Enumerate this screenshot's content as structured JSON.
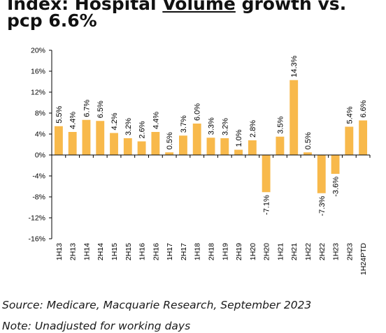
{
  "title": {
    "before": "Index: Hospital ",
    "underlined": "Volume",
    "after": " growth vs. pcp 6.6%"
  },
  "source": "Source: Medicare, Macquarie Research, September 2023",
  "note": "Note: Unadjusted for working days",
  "colors": {
    "bar": "#F8B94B",
    "axis": "#000000",
    "text": "#000000"
  },
  "chart_data": {
    "type": "bar",
    "title": "Index: Hospital Volume growth vs. pcp 6.6%",
    "xlabel": "",
    "ylabel": "",
    "categories": [
      "1H13",
      "2H13",
      "1H14",
      "2H14",
      "1H15",
      "2H15",
      "1H16",
      "2H16",
      "1H17",
      "2H17",
      "1H18",
      "2H18",
      "1H19",
      "2H19",
      "1H20",
      "2H20",
      "1H21",
      "2H21",
      "1H22",
      "2H22",
      "1H23",
      "2H23",
      "1H24PTD"
    ],
    "values": [
      5.5,
      4.4,
      6.7,
      6.5,
      4.2,
      3.2,
      2.6,
      4.4,
      0.5,
      3.7,
      6.0,
      3.3,
      3.2,
      1.0,
      2.8,
      -7.1,
      3.5,
      14.3,
      0.5,
      -7.3,
      -3.6,
      5.4,
      6.6
    ],
    "labels": [
      "5.5%",
      "4.4%",
      "6.7%",
      "6.5%",
      "4.2%",
      "3.2%",
      "2.6%",
      "4.4%",
      "0.5%",
      "3.7%",
      "6.0%",
      "3.3%",
      "3.2%",
      "1.0%",
      "2.8%",
      "-7.1%",
      "3.5%",
      "14.3%",
      "0.5%",
      "-7.3%",
      "-3.6%",
      "5.4%",
      "6.6%"
    ],
    "ylim": [
      -16,
      20
    ],
    "yticks": [
      -16,
      -12,
      -8,
      -4,
      0,
      4,
      8,
      12,
      16,
      20
    ],
    "ytick_labels": [
      "-16%",
      "-12%",
      "-8%",
      "-4%",
      "0%",
      "4%",
      "8%",
      "12%",
      "16%",
      "20%"
    ],
    "grid": false,
    "legend": "none"
  }
}
